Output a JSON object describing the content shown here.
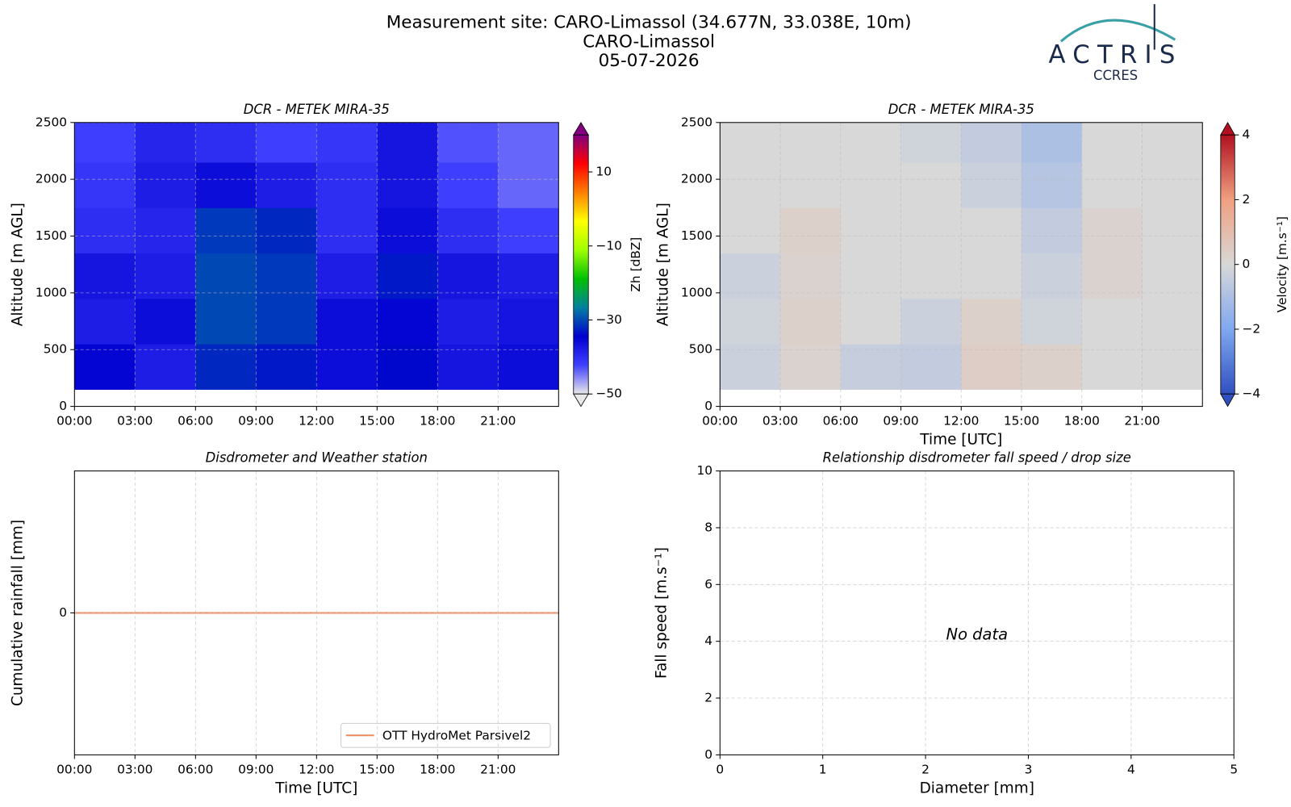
{
  "header": {
    "title_lines": [
      "Measurement site: CARO-Limassol (34.677N, 33.038E, 10m)",
      "CARO-Limassol",
      "05-07-2026"
    ],
    "logo": {
      "name": "ACTRIS",
      "sub": "CCRES"
    }
  },
  "chart_data": [
    {
      "type": "heatmap",
      "title": "DCR - METEK MIRA-35",
      "ylabel": "Altitude [m AGL]",
      "xlim": [
        0,
        24
      ],
      "ylim": [
        0,
        2500
      ],
      "xticks": [
        {
          "value": 0,
          "label": "00:00"
        },
        {
          "value": 3,
          "label": "03:00"
        },
        {
          "value": 6,
          "label": "06:00"
        },
        {
          "value": 9,
          "label": "09:00"
        },
        {
          "value": 12,
          "label": "12:00"
        },
        {
          "value": 15,
          "label": "15:00"
        },
        {
          "value": 18,
          "label": "18:00"
        },
        {
          "value": 21,
          "label": "21:00"
        }
      ],
      "yticks": [
        0,
        500,
        1000,
        1500,
        2000,
        2500
      ],
      "grid": true,
      "x": [
        1.5,
        4.5,
        7.5,
        10.5,
        13.5,
        16.5,
        19.5,
        22.5
      ],
      "y": [
        350,
        750,
        1150,
        1550,
        1950,
        2350
      ],
      "z": [
        [
          -35,
          -38,
          -32,
          -33,
          -36,
          -34,
          -37,
          -36
        ],
        [
          -38,
          -36,
          -30,
          -31,
          -36,
          -35,
          -38,
          -37
        ],
        [
          -37,
          -38,
          -30,
          -31,
          -38,
          -33,
          -37,
          -38
        ],
        [
          -40,
          -39,
          -31,
          -32,
          -40,
          -36,
          -40,
          -42
        ],
        [
          -41,
          -38,
          -36,
          -38,
          -40,
          -37,
          -42,
          -44
        ],
        [
          -42,
          -39,
          -40,
          -42,
          -41,
          -37,
          -43,
          -44
        ]
      ],
      "clim": [
        -50,
        20
      ],
      "cticks": [
        {
          "value": -50,
          "label": "−50"
        },
        {
          "value": -30,
          "label": "−30"
        },
        {
          "value": -10,
          "label": "−10"
        },
        10
      ],
      "clabel": "Zh [dBZ]",
      "colormap": [
        "#e8e8e8",
        "#4040ff",
        "#0000d0",
        "#0080a0",
        "#00c000",
        "#a0ff00",
        "#ffff00",
        "#ff8000",
        "#ff0000",
        "#800080"
      ]
    },
    {
      "type": "heatmap",
      "title": "DCR - METEK MIRA-35",
      "ylabel": "Altitude [m AGL]",
      "xlabel": "Time [UTC]",
      "xlim": [
        0,
        24
      ],
      "ylim": [
        0,
        2500
      ],
      "xticks": [
        {
          "value": 0,
          "label": "00:00"
        },
        {
          "value": 3,
          "label": "03:00"
        },
        {
          "value": 6,
          "label": "06:00"
        },
        {
          "value": 9,
          "label": "09:00"
        },
        {
          "value": 12,
          "label": "12:00"
        },
        {
          "value": 15,
          "label": "15:00"
        },
        {
          "value": 18,
          "label": "18:00"
        },
        {
          "value": 21,
          "label": "21:00"
        }
      ],
      "yticks": [
        0,
        500,
        1000,
        1500,
        2000,
        2500
      ],
      "grid": true,
      "x": [
        1.5,
        4.5,
        7.5,
        10.5,
        13.5,
        16.5,
        19.5,
        22.5
      ],
      "y": [
        350,
        750,
        1150,
        1550,
        1950,
        2350
      ],
      "z": [
        [
          -0.3,
          0.2,
          -0.4,
          -0.5,
          0.4,
          0.3,
          0,
          0
        ],
        [
          -0.2,
          0.3,
          0,
          -0.3,
          0.3,
          -0.2,
          0,
          0
        ],
        [
          -0.3,
          0.2,
          0,
          0,
          0,
          -0.3,
          0.2,
          0
        ],
        [
          0,
          0.3,
          0,
          0,
          0,
          -0.5,
          0.2,
          0
        ],
        [
          0,
          0,
          0,
          0,
          -0.3,
          -0.8,
          0,
          0
        ],
        [
          0,
          0,
          0,
          -0.2,
          -0.5,
          -1,
          0,
          0
        ]
      ],
      "clim": [
        -4,
        4
      ],
      "cticks": [
        {
          "value": -4,
          "label": "−4"
        },
        {
          "value": -2,
          "label": "−2"
        },
        0,
        2,
        4
      ],
      "clabel": "Velocity [m.s⁻¹]",
      "colormap": [
        "#3050c0",
        "#80a8f0",
        "#d8d8d8",
        "#f0a080",
        "#b01020"
      ]
    },
    {
      "type": "line",
      "title": "Disdrometer and Weather station",
      "ylabel": "Cumulative rainfall [mm]",
      "xlabel": "Time [UTC]",
      "xlim": [
        0,
        24
      ],
      "ylim": [
        -1,
        1
      ],
      "xticks": [
        {
          "value": 0,
          "label": "00:00"
        },
        {
          "value": 3,
          "label": "03:00"
        },
        {
          "value": 6,
          "label": "06:00"
        },
        {
          "value": 9,
          "label": "09:00"
        },
        {
          "value": 12,
          "label": "12:00"
        },
        {
          "value": 15,
          "label": "15:00"
        },
        {
          "value": 18,
          "label": "18:00"
        },
        {
          "value": 21,
          "label": "21:00"
        }
      ],
      "yticks": [
        0
      ],
      "grid": true,
      "legend": "lower right",
      "x": [
        0,
        24
      ],
      "series": [
        {
          "name": "OTT HydroMet Parsivel2",
          "color": "#f08a5d",
          "values": [
            0,
            0
          ]
        }
      ]
    },
    {
      "type": "scatter",
      "title": "Relationship disdrometer fall speed / drop size",
      "ylabel": "Fall speed [m.s⁻¹]",
      "xlabel": "Diameter [mm]",
      "xlim": [
        0,
        5
      ],
      "ylim": [
        0,
        10
      ],
      "xticks": [
        0,
        1,
        2,
        3,
        4,
        5
      ],
      "yticks": [
        0,
        2,
        4,
        6,
        8,
        10
      ],
      "grid": true,
      "x": [],
      "values": [],
      "annotation": "No data"
    }
  ]
}
